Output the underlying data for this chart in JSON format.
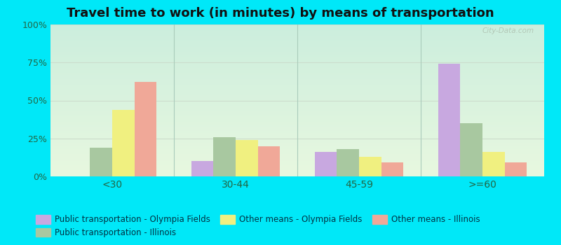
{
  "title": "Travel time to work (in minutes) by means of transportation",
  "categories": [
    "<30",
    "30-44",
    "45-59",
    ">=60"
  ],
  "series": {
    "Public transportation - Olympia Fields": [
      0,
      10,
      16,
      74
    ],
    "Public transportation - Illinois": [
      19,
      26,
      18,
      35
    ],
    "Other means - Olympia Fields": [
      44,
      24,
      13,
      16
    ],
    "Other means - Illinois": [
      62,
      20,
      9,
      9
    ]
  },
  "colors": {
    "Public transportation - Olympia Fields": "#c8a8e0",
    "Public transportation - Illinois": "#a8c8a0",
    "Other means - Olympia Fields": "#f0f080",
    "Other means - Illinois": "#f0a898"
  },
  "bar_width": 0.18,
  "ylim": [
    0,
    100
  ],
  "yticks": [
    0,
    25,
    50,
    75,
    100
  ],
  "ytick_labels": [
    "0%",
    "25%",
    "50%",
    "75%",
    "100%"
  ],
  "outer_bg": "#00e8f8",
  "title_fontsize": 13,
  "watermark": "City-Data.com",
  "legend_fontsize": 8.5,
  "bg_top": "#cceedd",
  "bg_bottom": "#e8f8e0"
}
